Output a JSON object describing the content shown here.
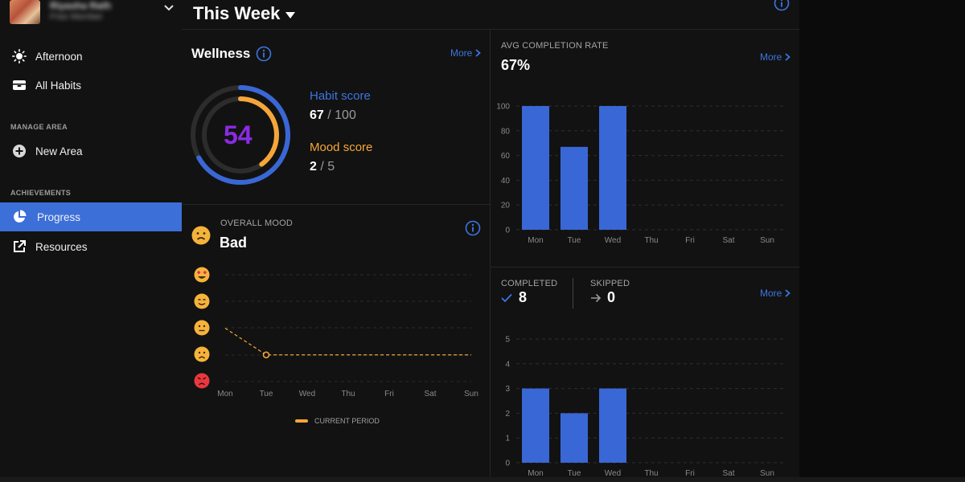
{
  "user": {
    "name": "Riyasha Rath",
    "plan": "Free Member"
  },
  "sidebar": {
    "items_top": [
      {
        "label": "Afternoon",
        "icon": "sun-icon"
      },
      {
        "label": "All Habits",
        "icon": "inbox-icon"
      }
    ],
    "manage_label": "MANAGE AREA",
    "new_area": "New Area",
    "achievements_label": "ACHIEVEMENTS",
    "progress": "Progress",
    "resources": "Resources"
  },
  "header": {
    "title": "This Week"
  },
  "wellness": {
    "title": "Wellness",
    "more": "More",
    "gauge_value": "54",
    "habit_label": "Habit score",
    "habit_value": "67",
    "habit_max": "/ 100",
    "mood_label": "Mood score",
    "mood_value": "2",
    "mood_max": "/ 5",
    "habit_fraction": 0.67,
    "mood_fraction": 0.4
  },
  "mood": {
    "label": "OVERALL MOOD",
    "value": "Bad",
    "legend": "CURRENT PERIOD",
    "days": [
      "Mon",
      "Tue",
      "Wed",
      "Thu",
      "Fri",
      "Sat",
      "Sun"
    ]
  },
  "rate": {
    "label": "AVG COMPLETION RATE",
    "value": "67%",
    "more": "More"
  },
  "completed": {
    "completed_label": "COMPLETED",
    "completed_value": "8",
    "skipped_label": "SKIPPED",
    "skipped_value": "0",
    "more": "More"
  },
  "colors": {
    "accent": "#3d6fd9",
    "bar": "#3a67d6",
    "mood": "#f5a63a",
    "gauge_purple": "#8a2be2"
  },
  "chart_data": [
    {
      "type": "bar",
      "title": "AVG COMPLETION RATE",
      "categories": [
        "Mon",
        "Tue",
        "Wed",
        "Thu",
        "Fri",
        "Sat",
        "Sun"
      ],
      "values": [
        100,
        67,
        100,
        0,
        0,
        0,
        0
      ],
      "yticks": [
        "0",
        "20",
        "40",
        "60",
        "80",
        "100"
      ],
      "ylim": [
        0,
        100
      ]
    },
    {
      "type": "bar",
      "title": "COMPLETED",
      "categories": [
        "Mon",
        "Tue",
        "Wed",
        "Thu",
        "Fri",
        "Sat",
        "Sun"
      ],
      "values": [
        3,
        2,
        3,
        0,
        0,
        0,
        0
      ],
      "yticks": [
        "0",
        "1",
        "2",
        "3",
        "4",
        "5"
      ],
      "ylim": [
        0,
        5
      ]
    },
    {
      "type": "line",
      "title": "OVERALL MOOD",
      "categories": [
        "Mon",
        "Tue",
        "Wed",
        "Thu",
        "Fri",
        "Sat",
        "Sun"
      ],
      "values": [
        3,
        2,
        2,
        2,
        2,
        2,
        2
      ],
      "ylim": [
        1,
        5
      ],
      "series_name": "CURRENT PERIOD"
    }
  ]
}
